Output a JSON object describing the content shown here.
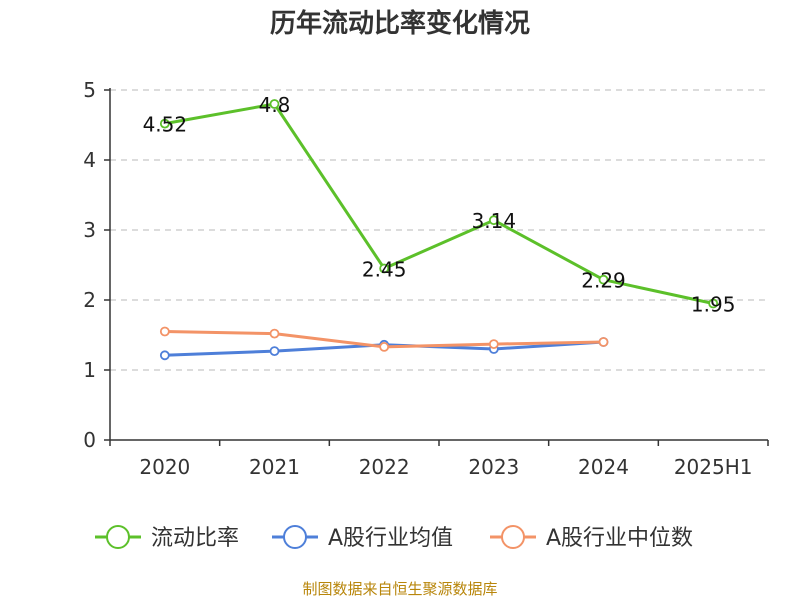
{
  "chart_data": {
    "type": "line",
    "title": "历年流动比率变化情况",
    "categories": [
      "2020",
      "2021",
      "2022",
      "2023",
      "2024",
      "2025H1"
    ],
    "ylim": [
      0,
      5
    ],
    "yticks": [
      "0",
      "1",
      "2",
      "3",
      "4",
      "5"
    ],
    "grid": true,
    "legend_position": "bottom",
    "series": [
      {
        "name": "流动比率",
        "color": "#5cc02a",
        "values": [
          4.52,
          4.8,
          2.45,
          3.14,
          2.29,
          1.95
        ],
        "data_labels": [
          "4.52",
          "4.8",
          "2.45",
          "3.14",
          "2.29",
          "1.95"
        ]
      },
      {
        "name": "A股行业均值",
        "color": "#4e7fd9",
        "values": [
          1.21,
          1.27,
          1.36,
          1.3,
          1.4,
          null
        ]
      },
      {
        "name": "A股行业中位数",
        "color": "#f39367",
        "values": [
          1.55,
          1.52,
          1.33,
          1.37,
          1.4,
          null
        ]
      }
    ],
    "source": "制图数据来自恒生聚源数据库"
  }
}
